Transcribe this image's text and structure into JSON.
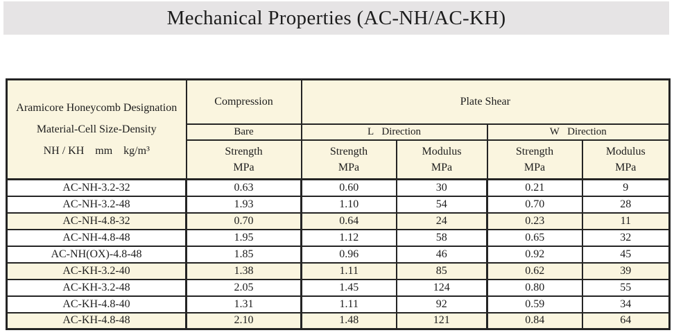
{
  "title": "Mechanical Properties (AC-NH/AC-KH)",
  "colors": {
    "banner_bg": "#e6e4e5",
    "header_and_highlight_bg": "#faf5df",
    "border": "#242424",
    "text": "#1d1d1d"
  },
  "table": {
    "designation_header": {
      "line1": "Aramicore Honeycomb Designation",
      "line2": "Material-Cell Size-Density",
      "line3": "NH / KH    mm    kg/m³"
    },
    "headers": {
      "compression": "Compression",
      "plate_shear": "Plate Shear",
      "bare": "Bare",
      "l_direction": "L   Direction",
      "w_direction": "W   Direction",
      "strength": "Strength",
      "modulus": "Modulus",
      "unit": "MPa"
    },
    "rows": [
      {
        "designation": "AC-NH-3.2-32",
        "compression": "0.63",
        "l_strength": "0.60",
        "l_modulus": "30",
        "w_strength": "0.21",
        "w_modulus": "9",
        "shaded": false
      },
      {
        "designation": "AC-NH-3.2-48",
        "compression": "1.93",
        "l_strength": "1.10",
        "l_modulus": "54",
        "w_strength": "0.70",
        "w_modulus": "28",
        "shaded": false
      },
      {
        "designation": "AC-NH-4.8-32",
        "compression": "0.70",
        "l_strength": "0.64",
        "l_modulus": "24",
        "w_strength": "0.23",
        "w_modulus": "11",
        "shaded": true
      },
      {
        "designation": "AC-NH-4.8-48",
        "compression": "1.95",
        "l_strength": "1.12",
        "l_modulus": "58",
        "w_strength": "0.65",
        "w_modulus": "32",
        "shaded": false
      },
      {
        "designation": "AC-NH(OX)-4.8-48",
        "compression": "1.85",
        "l_strength": "0.96",
        "l_modulus": "46",
        "w_strength": "0.92",
        "w_modulus": "45",
        "shaded": false
      },
      {
        "designation": "AC-KH-3.2-40",
        "compression": "1.38",
        "l_strength": "1.11",
        "l_modulus": "85",
        "w_strength": "0.62",
        "w_modulus": "39",
        "shaded": true
      },
      {
        "designation": "AC-KH-3.2-48",
        "compression": "2.05",
        "l_strength": "1.45",
        "l_modulus": "124",
        "w_strength": "0.80",
        "w_modulus": "55",
        "shaded": false
      },
      {
        "designation": "AC-KH-4.8-40",
        "compression": "1.31",
        "l_strength": "1.11",
        "l_modulus": "92",
        "w_strength": "0.59",
        "w_modulus": "34",
        "shaded": false
      },
      {
        "designation": "AC-KH-4.8-48",
        "compression": "2.10",
        "l_strength": "1.48",
        "l_modulus": "121",
        "w_strength": "0.84",
        "w_modulus": "64",
        "shaded": true
      }
    ]
  }
}
